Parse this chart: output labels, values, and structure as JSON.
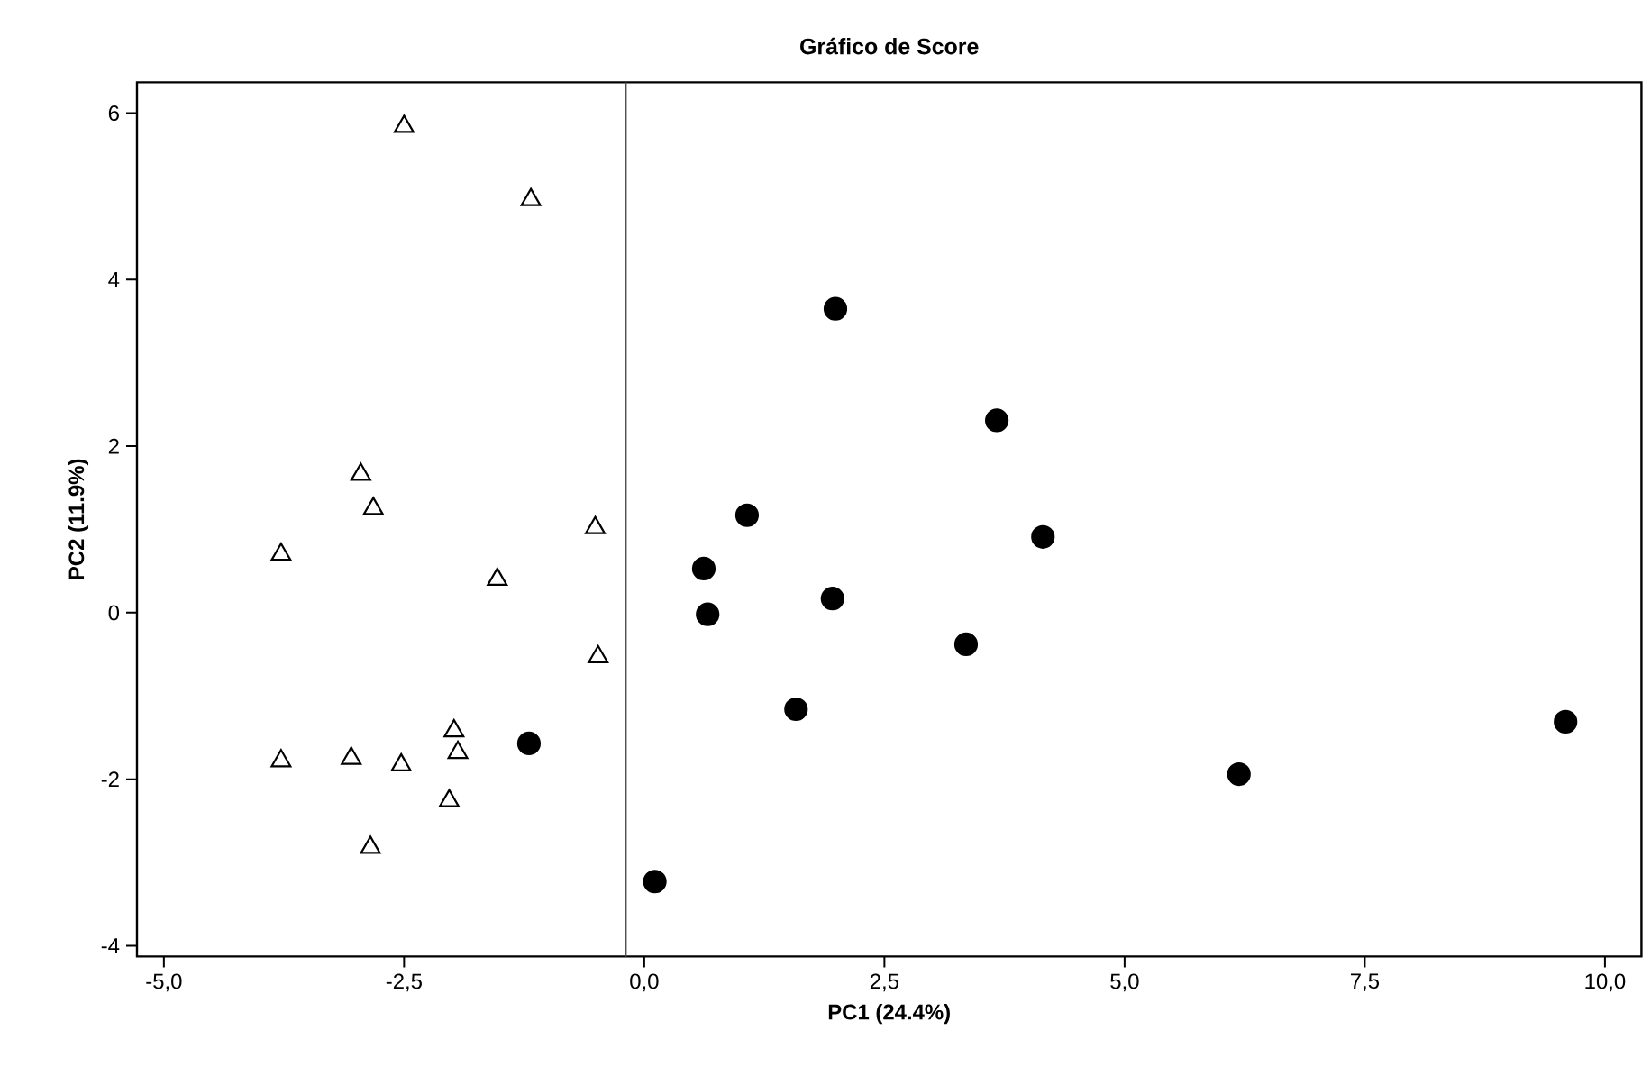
{
  "chart_data": {
    "type": "scatter",
    "title": "Gráfico de Score",
    "xlabel": "PC1 (24.4%)",
    "ylabel": "PC2 (11.9%)",
    "xlim": [
      -5.28,
      10.38
    ],
    "ylim": [
      -4.13,
      6.37
    ],
    "xticks": [
      {
        "value": -5,
        "label": "-5,0"
      },
      {
        "value": -2.5,
        "label": "-2,5"
      },
      {
        "value": 0,
        "label": "0,0"
      },
      {
        "value": 2.5,
        "label": "2,5"
      },
      {
        "value": 5,
        "label": "5,0"
      },
      {
        "value": 7.5,
        "label": "7,5"
      },
      {
        "value": 10,
        "label": "10,0"
      }
    ],
    "yticks": [
      -4,
      -2,
      0,
      2,
      4,
      6
    ],
    "grid": false,
    "ref_lines": [
      {
        "axis": "x",
        "value": -0.19,
        "color": "#505050"
      }
    ],
    "series": [
      {
        "color": "#000000",
        "marker": "triangle",
        "x": [
          -2.5,
          -1.18,
          -2.95,
          -2.82,
          -0.51,
          -3.78,
          -1.53,
          -0.48,
          -1.98,
          -1.94,
          -3.78,
          -3.05,
          -2.53,
          -2.03,
          -2.85
        ],
        "values": [
          5.84,
          4.96,
          1.66,
          1.25,
          1.02,
          0.7,
          0.4,
          -0.53,
          -1.42,
          -1.68,
          -1.78,
          -1.75,
          -1.83,
          -2.26,
          -2.82
        ]
      },
      {
        "color": "#000000",
        "marker": "circle",
        "x": [
          -1.2,
          0.11,
          1.99,
          3.67,
          1.07,
          4.15,
          0.62,
          1.96,
          0.66,
          3.35,
          1.58,
          6.19,
          9.59
        ],
        "values": [
          -1.57,
          -3.23,
          3.65,
          2.31,
          1.17,
          0.91,
          0.53,
          0.17,
          -0.02,
          -0.38,
          -1.16,
          -1.94,
          -1.31
        ]
      }
    ]
  }
}
